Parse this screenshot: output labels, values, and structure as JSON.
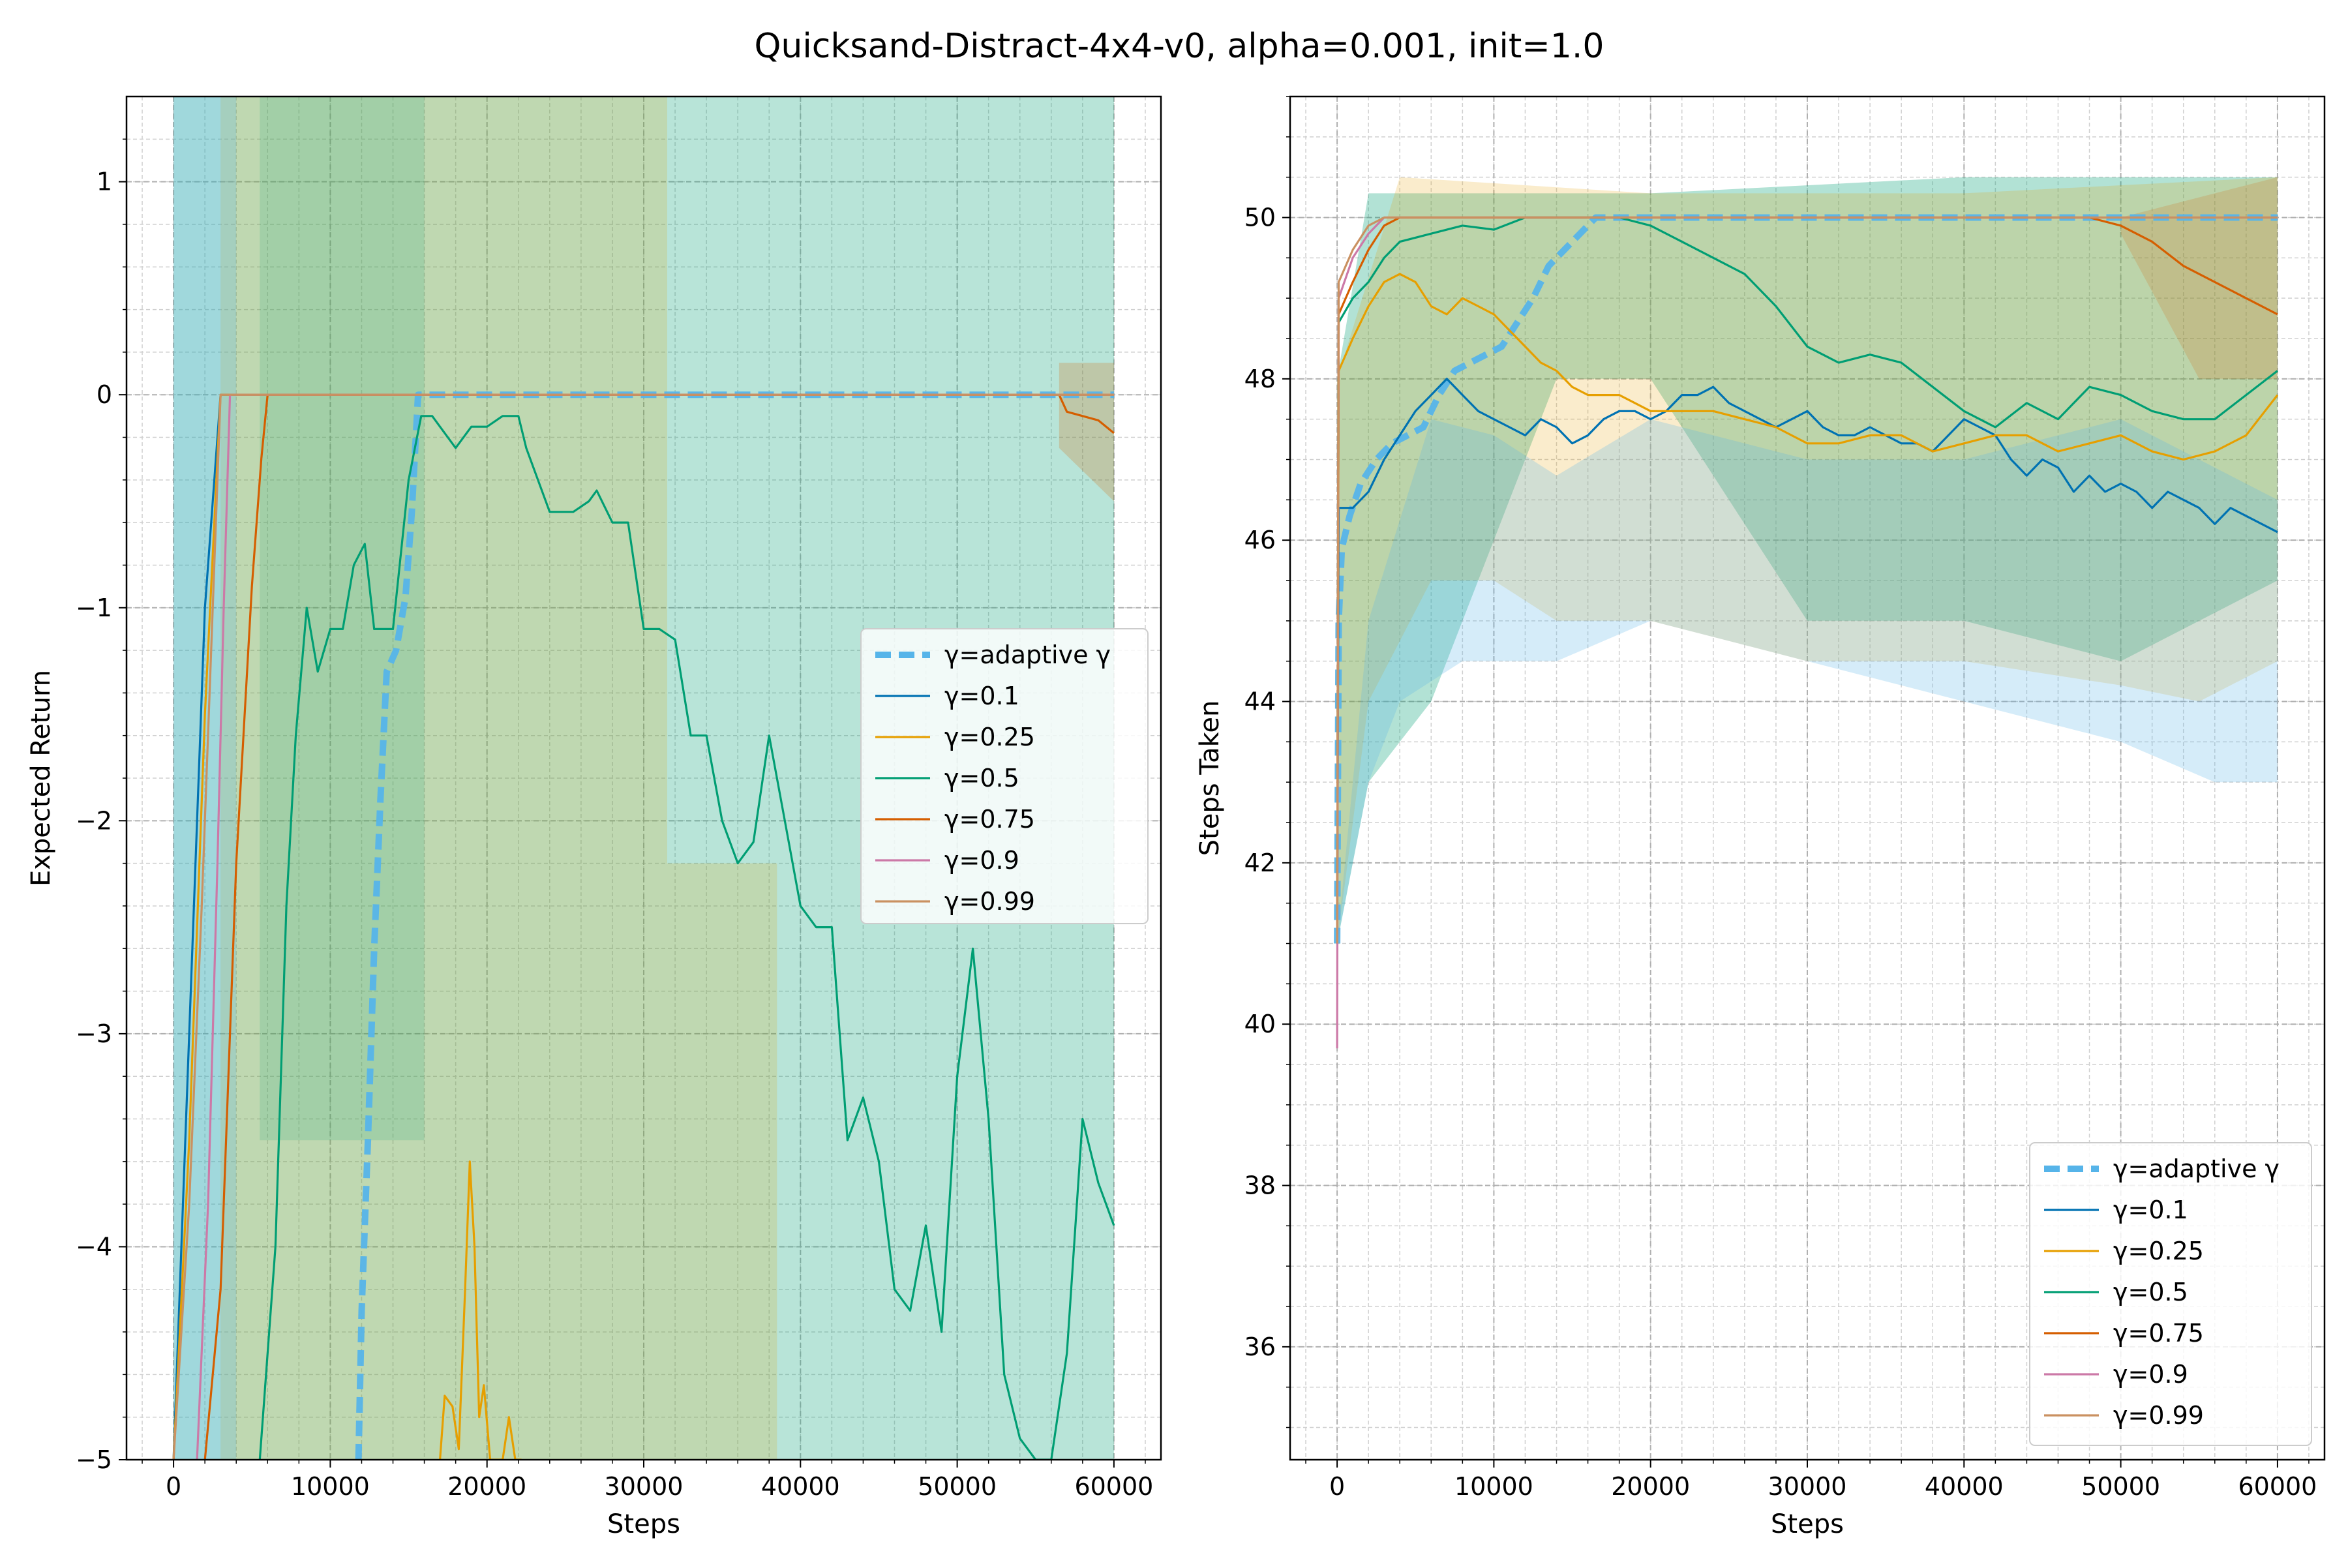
{
  "figure": {
    "title": "Quicksand-Distract-4x4-v0, alpha=0.001, init=1.0"
  },
  "colors": {
    "adaptive": "#56b4e9",
    "g01": "#0072b2",
    "g025": "#e69f00",
    "g05": "#009e73",
    "g075": "#d55e00",
    "g09": "#cc79a7",
    "g099": "#ca9161"
  },
  "chart_data": [
    {
      "type": "line",
      "xlabel": "Steps",
      "ylabel": "Expected Return",
      "xlim": [
        -3000,
        63000
      ],
      "ylim": [
        -5,
        1.4
      ],
      "xticks": [
        0,
        10000,
        20000,
        30000,
        40000,
        50000,
        60000
      ],
      "yticks": [
        1,
        0,
        -1,
        -2,
        -3,
        -4,
        -5
      ],
      "ytick_labels": [
        "1",
        "0",
        "−1",
        "−2",
        "−3",
        "−4",
        "−5"
      ],
      "grid": true,
      "legend_position": "center-right",
      "series": [
        {
          "name": "γ=adaptive γ",
          "color_key": "adaptive",
          "style": "dashed",
          "x": [
            11800,
            12000,
            12400,
            12800,
            13200,
            13600,
            14200,
            14800,
            15200,
            15600,
            20000,
            30000,
            40000,
            50000,
            60000
          ],
          "y": [
            -5.0,
            -4.3,
            -3.5,
            -2.6,
            -1.9,
            -1.3,
            -1.2,
            -0.95,
            -0.55,
            0.0,
            0.0,
            0.0,
            0.0,
            0.0,
            0.0
          ]
        },
        {
          "name": "γ=0.1",
          "color_key": "g01",
          "style": "solid",
          "x": [
            0,
            1000,
            2000,
            3000,
            4000,
            60000
          ],
          "y": [
            -5.0,
            -3.0,
            -1.0,
            0.0,
            0.0,
            0.0
          ]
        },
        {
          "name": "γ=0.25",
          "color_key": "g025",
          "style": "solid",
          "x": [
            0,
            1000,
            2000,
            3000,
            4000,
            60000,
            17000,
            17300,
            17800,
            18200,
            18600,
            18900,
            19200,
            19500,
            19800,
            20200,
            20600,
            21000,
            21400,
            21800,
            22200
          ],
          "y": [
            -5.0,
            -3.5,
            -1.5,
            0.0,
            0.0,
            0.0,
            -5.0,
            -4.7,
            -4.75,
            -4.95,
            -4.2,
            -3.6,
            -4.0,
            -4.8,
            -4.65,
            -5.0,
            -5.0,
            -5.0,
            -4.8,
            -5.0,
            -5.0
          ]
        },
        {
          "name": "γ=0.5",
          "color_key": "g05",
          "style": "solid",
          "x": [
            5500,
            6500,
            7200,
            7800,
            8500,
            9200,
            10000,
            10800,
            11500,
            12200,
            12800,
            13200,
            14000,
            15000,
            15800,
            16500,
            17000,
            18000,
            19000,
            20000,
            21000,
            22000,
            22500,
            24000,
            25500,
            26500,
            27000,
            28000,
            29000,
            30000,
            31000,
            32000,
            33000,
            34000,
            35000,
            36000,
            37000,
            38000,
            39000,
            40000,
            41000,
            42000,
            43000,
            44000,
            45000,
            46000,
            47000,
            48000,
            49000,
            50000,
            51000,
            52000,
            53000,
            54000,
            55000,
            56000,
            57000,
            58000,
            59000,
            60000
          ],
          "y": [
            -5.0,
            -4.0,
            -2.4,
            -1.6,
            -1.0,
            -1.3,
            -1.1,
            -1.1,
            -0.8,
            -0.7,
            -1.1,
            -1.1,
            -1.1,
            -0.4,
            -0.1,
            -0.1,
            -0.15,
            -0.25,
            -0.15,
            -0.15,
            -0.1,
            -0.1,
            -0.25,
            -0.55,
            -0.55,
            -0.5,
            -0.45,
            -0.6,
            -0.6,
            -1.1,
            -1.1,
            -1.15,
            -1.6,
            -1.6,
            -2.0,
            -2.2,
            -2.1,
            -1.6,
            -2.0,
            -2.4,
            -2.5,
            -2.5,
            -3.5,
            -3.3,
            -3.6,
            -4.2,
            -4.3,
            -3.9,
            -4.4,
            -3.2,
            -2.6,
            -3.4,
            -4.6,
            -4.9,
            -5.0,
            -5.0,
            -4.5,
            -3.4,
            -3.7,
            -3.9
          ]
        },
        {
          "name": "γ=0.75",
          "color_key": "g075",
          "style": "solid",
          "x": [
            2000,
            3000,
            4000,
            5000,
            5600,
            6000,
            10000,
            20000,
            30000,
            40000,
            50000,
            56500,
            57000,
            58000,
            59000,
            60000
          ],
          "y": [
            -5.0,
            -4.2,
            -2.2,
            -0.9,
            -0.3,
            0.0,
            0.0,
            0.0,
            0.0,
            0.0,
            0.0,
            0.0,
            -0.08,
            -0.1,
            -0.12,
            -0.18
          ]
        },
        {
          "name": "γ=0.9",
          "color_key": "g09",
          "style": "solid",
          "x": [
            1500,
            2200,
            2800,
            3200,
            3600,
            5000,
            60000
          ],
          "y": [
            -5.0,
            -3.8,
            -2.2,
            -1.0,
            0.0,
            0.0,
            0.0
          ]
        },
        {
          "name": "γ=0.99",
          "color_key": "g099",
          "style": "solid",
          "x": [
            0,
            1000,
            1800,
            2600,
            3000,
            5000,
            60000
          ],
          "y": [
            -5.0,
            -3.8,
            -2.4,
            -0.8,
            0.0,
            0.0,
            0.0
          ]
        }
      ]
    },
    {
      "type": "line",
      "xlabel": "Steps",
      "ylabel": "Steps Taken",
      "xlim": [
        -3000,
        63000
      ],
      "ylim": [
        34.6,
        51.5
      ],
      "xticks": [
        0,
        10000,
        20000,
        30000,
        40000,
        50000,
        60000
      ],
      "yticks": [
        36,
        38,
        40,
        42,
        44,
        46,
        48,
        50
      ],
      "grid": true,
      "legend_position": "lower-right",
      "series": [
        {
          "name": "γ=adaptive γ",
          "color_key": "adaptive",
          "style": "dashed",
          "x": [
            0,
            100,
            300,
            800,
            1500,
            2500,
            3500,
            4500,
            5500,
            6500,
            7500,
            8500,
            9500,
            10500,
            11500,
            12500,
            13500,
            14500,
            15500,
            16500,
            17500,
            20000,
            30000,
            40000,
            50000,
            60000
          ],
          "y": [
            41.0,
            45.0,
            45.9,
            46.3,
            46.7,
            47.0,
            47.2,
            47.3,
            47.4,
            47.8,
            48.1,
            48.2,
            48.3,
            48.4,
            48.7,
            49.0,
            49.4,
            49.6,
            49.8,
            50.0,
            50.0,
            50.0,
            50.0,
            50.0,
            50.0,
            50.0
          ]
        },
        {
          "name": "γ=0.1",
          "color_key": "g01",
          "style": "solid",
          "x": [
            0,
            100,
            1000,
            2000,
            3000,
            4000,
            5000,
            6000,
            7000,
            8000,
            9000,
            10000,
            11000,
            12000,
            13000,
            14000,
            15000,
            16000,
            17000,
            18000,
            19000,
            20000,
            21000,
            22000,
            23000,
            24000,
            25000,
            26000,
            27000,
            28000,
            29000,
            30000,
            31000,
            32000,
            33000,
            34000,
            35000,
            36000,
            37000,
            38000,
            39000,
            40000,
            41000,
            42000,
            43000,
            44000,
            45000,
            46000,
            47000,
            48000,
            49000,
            50000,
            51000,
            52000,
            53000,
            54000,
            55000,
            56000,
            57000,
            58000,
            59000,
            60000
          ],
          "y": [
            41.0,
            46.4,
            46.4,
            46.6,
            47.0,
            47.3,
            47.6,
            47.8,
            48.0,
            47.8,
            47.6,
            47.5,
            47.4,
            47.3,
            47.5,
            47.4,
            47.2,
            47.3,
            47.5,
            47.6,
            47.6,
            47.5,
            47.6,
            47.8,
            47.8,
            47.9,
            47.7,
            47.6,
            47.5,
            47.4,
            47.5,
            47.6,
            47.4,
            47.3,
            47.3,
            47.4,
            47.3,
            47.2,
            47.2,
            47.1,
            47.3,
            47.5,
            47.4,
            47.3,
            47.0,
            46.8,
            47.0,
            46.9,
            46.6,
            46.8,
            46.6,
            46.7,
            46.6,
            46.4,
            46.6,
            46.5,
            46.4,
            46.2,
            46.4,
            46.3,
            46.2,
            46.1
          ]
        },
        {
          "name": "γ=0.25",
          "color_key": "g025",
          "style": "solid",
          "x": [
            0,
            100,
            1000,
            2000,
            3000,
            4000,
            5000,
            6000,
            7000,
            8000,
            9000,
            10000,
            11000,
            12000,
            13000,
            14000,
            15000,
            16000,
            17000,
            18000,
            19000,
            20000,
            22000,
            24000,
            26000,
            28000,
            30000,
            32000,
            34000,
            36000,
            38000,
            40000,
            42000,
            44000,
            46000,
            48000,
            50000,
            52000,
            54000,
            56000,
            58000,
            60000
          ],
          "y": [
            41.0,
            48.1,
            48.5,
            48.9,
            49.2,
            49.3,
            49.2,
            48.9,
            48.8,
            49.0,
            48.9,
            48.8,
            48.6,
            48.4,
            48.2,
            48.1,
            47.9,
            47.8,
            47.8,
            47.8,
            47.7,
            47.6,
            47.6,
            47.6,
            47.5,
            47.4,
            47.2,
            47.2,
            47.3,
            47.3,
            47.1,
            47.2,
            47.3,
            47.3,
            47.1,
            47.2,
            47.3,
            47.1,
            47.0,
            47.1,
            47.3,
            47.8
          ]
        },
        {
          "name": "γ=0.5",
          "color_key": "g05",
          "style": "solid",
          "x": [
            0,
            100,
            1000,
            2000,
            3000,
            4000,
            6000,
            8000,
            10000,
            12000,
            14000,
            16000,
            18000,
            20000,
            22000,
            24000,
            26000,
            28000,
            30000,
            32000,
            34000,
            36000,
            38000,
            40000,
            42000,
            44000,
            46000,
            48000,
            50000,
            52000,
            54000,
            56000,
            58000,
            60000
          ],
          "y": [
            41.0,
            48.7,
            49.0,
            49.2,
            49.5,
            49.7,
            49.8,
            49.9,
            49.85,
            50.0,
            50.0,
            50.0,
            50.0,
            49.9,
            49.7,
            49.5,
            49.3,
            48.9,
            48.4,
            48.2,
            48.3,
            48.2,
            47.9,
            47.6,
            47.4,
            47.7,
            47.5,
            47.9,
            47.8,
            47.6,
            47.5,
            47.5,
            47.8,
            48.1
          ]
        },
        {
          "name": "γ=0.75",
          "color_key": "g075",
          "style": "solid",
          "x": [
            0,
            100,
            1000,
            2000,
            3000,
            4000,
            5000,
            6000,
            10000,
            20000,
            30000,
            40000,
            48000,
            50000,
            52000,
            54000,
            56000,
            58000,
            60000
          ],
          "y": [
            41.0,
            48.8,
            49.2,
            49.6,
            49.9,
            50.0,
            50.0,
            50.0,
            50.0,
            50.0,
            50.0,
            50.0,
            50.0,
            49.9,
            49.7,
            49.4,
            49.2,
            49.0,
            48.8
          ]
        },
        {
          "name": "γ=0.9",
          "color_key": "g09",
          "style": "solid",
          "x": [
            0,
            100,
            1000,
            2000,
            3000,
            4000,
            10000,
            20000,
            30000,
            40000,
            50000,
            60000
          ],
          "y": [
            39.7,
            49.0,
            49.5,
            49.8,
            50.0,
            50.0,
            50.0,
            50.0,
            50.0,
            50.0,
            50.0,
            50.0
          ]
        },
        {
          "name": "γ=0.99",
          "color_key": "g099",
          "style": "solid",
          "x": [
            0,
            100,
            1000,
            2000,
            3000,
            4000,
            10000,
            20000,
            30000,
            40000,
            50000,
            60000
          ],
          "y": [
            41.0,
            49.2,
            49.6,
            49.9,
            50.0,
            50.0,
            50.0,
            50.0,
            50.0,
            50.0,
            50.0,
            50.0
          ]
        }
      ]
    }
  ]
}
